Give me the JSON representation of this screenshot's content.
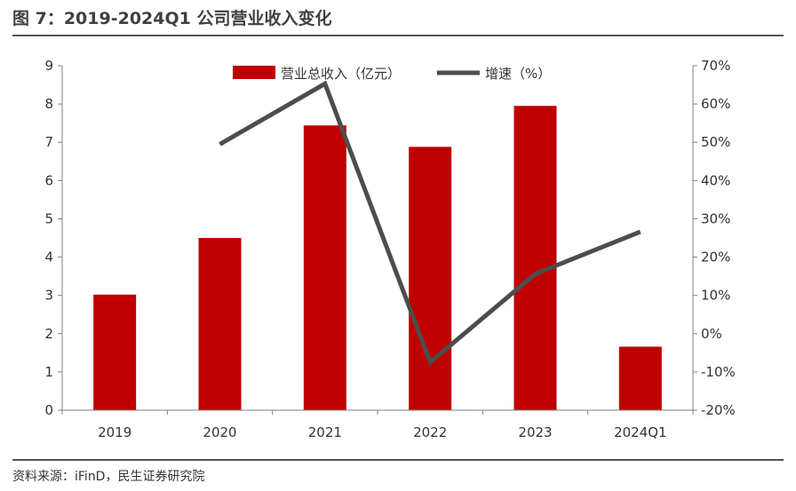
{
  "header": {
    "title": "图 7：2019-2024Q1 公司营业收入变化"
  },
  "footer": {
    "source": "资料来源：iFinD，民生证券研究院"
  },
  "colors": {
    "bar": "#c00000",
    "line": "#4d4d4d",
    "axis": "#808080",
    "rule": "#555555"
  },
  "chart_data": {
    "type": "bar+line",
    "categories": [
      "2019",
      "2020",
      "2021",
      "2022",
      "2023",
      "2024Q1"
    ],
    "series": [
      {
        "name": "营业总收入（亿元）",
        "type": "bar",
        "axis": "left",
        "values": [
          3.02,
          4.5,
          7.44,
          6.88,
          7.95,
          1.66
        ]
      },
      {
        "name": "增速（%）",
        "type": "line",
        "axis": "right",
        "values": [
          null,
          49.5,
          65.3,
          -7.5,
          15.6,
          26.6
        ]
      }
    ],
    "y_left": {
      "ylim": [
        0,
        9
      ],
      "ticks": [
        "0",
        "1",
        "2",
        "3",
        "4",
        "5",
        "6",
        "7",
        "8",
        "9"
      ]
    },
    "y_right": {
      "ylim": [
        -20,
        70
      ],
      "ticks": [
        "-20%",
        "-10%",
        "0%",
        "10%",
        "20%",
        "30%",
        "40%",
        "50%",
        "60%",
        "70%"
      ]
    },
    "legend": {
      "position": "top-center"
    },
    "grid": false
  }
}
